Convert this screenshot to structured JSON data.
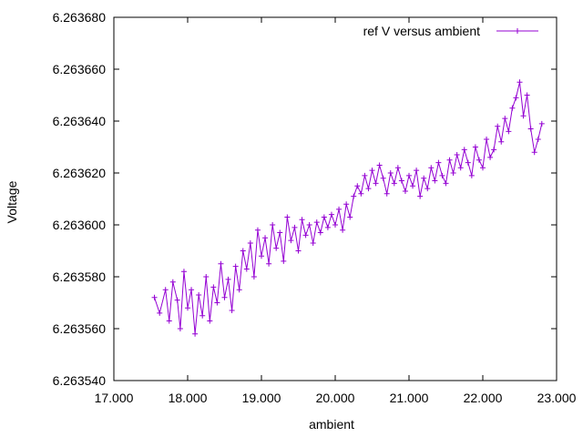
{
  "chart_data": {
    "type": "line",
    "title": "",
    "xlabel": "ambient",
    "ylabel": "Voltage",
    "xlim": [
      17.0,
      23.0
    ],
    "ylim": [
      6.26354,
      6.26368
    ],
    "xticks": [
      "17.000",
      "18.000",
      "19.000",
      "20.000",
      "21.000",
      "22.000",
      "23.000"
    ],
    "yticks": [
      "6.263540",
      "6.263560",
      "6.263580",
      "6.263600",
      "6.263620",
      "6.263640",
      "6.263660",
      "6.263680"
    ],
    "legend_position": "top-right",
    "grid": false,
    "series": [
      {
        "name": "ref V versus ambient",
        "color": "#9400d3",
        "marker": "plus",
        "x": [
          17.55,
          17.62,
          17.7,
          17.75,
          17.8,
          17.86,
          17.9,
          17.95,
          18.0,
          18.05,
          18.1,
          18.15,
          18.2,
          18.25,
          18.3,
          18.35,
          18.4,
          18.45,
          18.5,
          18.55,
          18.6,
          18.65,
          18.7,
          18.75,
          18.8,
          18.85,
          18.9,
          18.95,
          19.0,
          19.05,
          19.1,
          19.15,
          19.2,
          19.25,
          19.3,
          19.35,
          19.4,
          19.45,
          19.5,
          19.55,
          19.6,
          19.65,
          19.7,
          19.75,
          19.8,
          19.85,
          19.9,
          19.95,
          20.0,
          20.05,
          20.1,
          20.15,
          20.2,
          20.25,
          20.3,
          20.35,
          20.4,
          20.45,
          20.5,
          20.55,
          20.6,
          20.65,
          20.7,
          20.75,
          20.8,
          20.85,
          20.9,
          20.95,
          21.0,
          21.05,
          21.1,
          21.15,
          21.2,
          21.25,
          21.3,
          21.35,
          21.4,
          21.45,
          21.5,
          21.55,
          21.6,
          21.65,
          21.7,
          21.75,
          21.8,
          21.85,
          21.9,
          21.95,
          22.0,
          22.05,
          22.1,
          22.15,
          22.2,
          22.25,
          22.3,
          22.35,
          22.4,
          22.45,
          22.5,
          22.55,
          22.6,
          22.65,
          22.7,
          22.75,
          22.8
        ],
        "y": [
          6.263572,
          6.263566,
          6.263575,
          6.263563,
          6.263578,
          6.263571,
          6.26356,
          6.263582,
          6.263568,
          6.263575,
          6.263558,
          6.263573,
          6.263565,
          6.26358,
          6.263563,
          6.263576,
          6.26357,
          6.263585,
          6.263572,
          6.263579,
          6.263567,
          6.263584,
          6.263575,
          6.26359,
          6.263583,
          6.263593,
          6.26358,
          6.263598,
          6.263588,
          6.263595,
          6.263585,
          6.2636,
          6.263591,
          6.263597,
          6.263586,
          6.263603,
          6.263594,
          6.263599,
          6.26359,
          6.263602,
          6.263596,
          6.2636,
          6.263593,
          6.263601,
          6.263597,
          6.263603,
          6.263599,
          6.263604,
          6.2636,
          6.263606,
          6.263598,
          6.263608,
          6.263603,
          6.263611,
          6.263615,
          6.263612,
          6.263619,
          6.263614,
          6.263621,
          6.263616,
          6.263623,
          6.263618,
          6.263612,
          6.26362,
          6.263616,
          6.263622,
          6.263617,
          6.263613,
          6.263619,
          6.263615,
          6.263621,
          6.263611,
          6.263618,
          6.263614,
          6.263622,
          6.263617,
          6.263624,
          6.263619,
          6.263616,
          6.263625,
          6.26362,
          6.263627,
          6.263622,
          6.263629,
          6.263624,
          6.263619,
          6.26363,
          6.263625,
          6.263622,
          6.263633,
          6.263626,
          6.263629,
          6.263638,
          6.263632,
          6.263641,
          6.263636,
          6.263645,
          6.263649,
          6.263655,
          6.263642,
          6.26365,
          6.263637,
          6.263628,
          6.263633,
          6.263639
        ]
      }
    ]
  }
}
